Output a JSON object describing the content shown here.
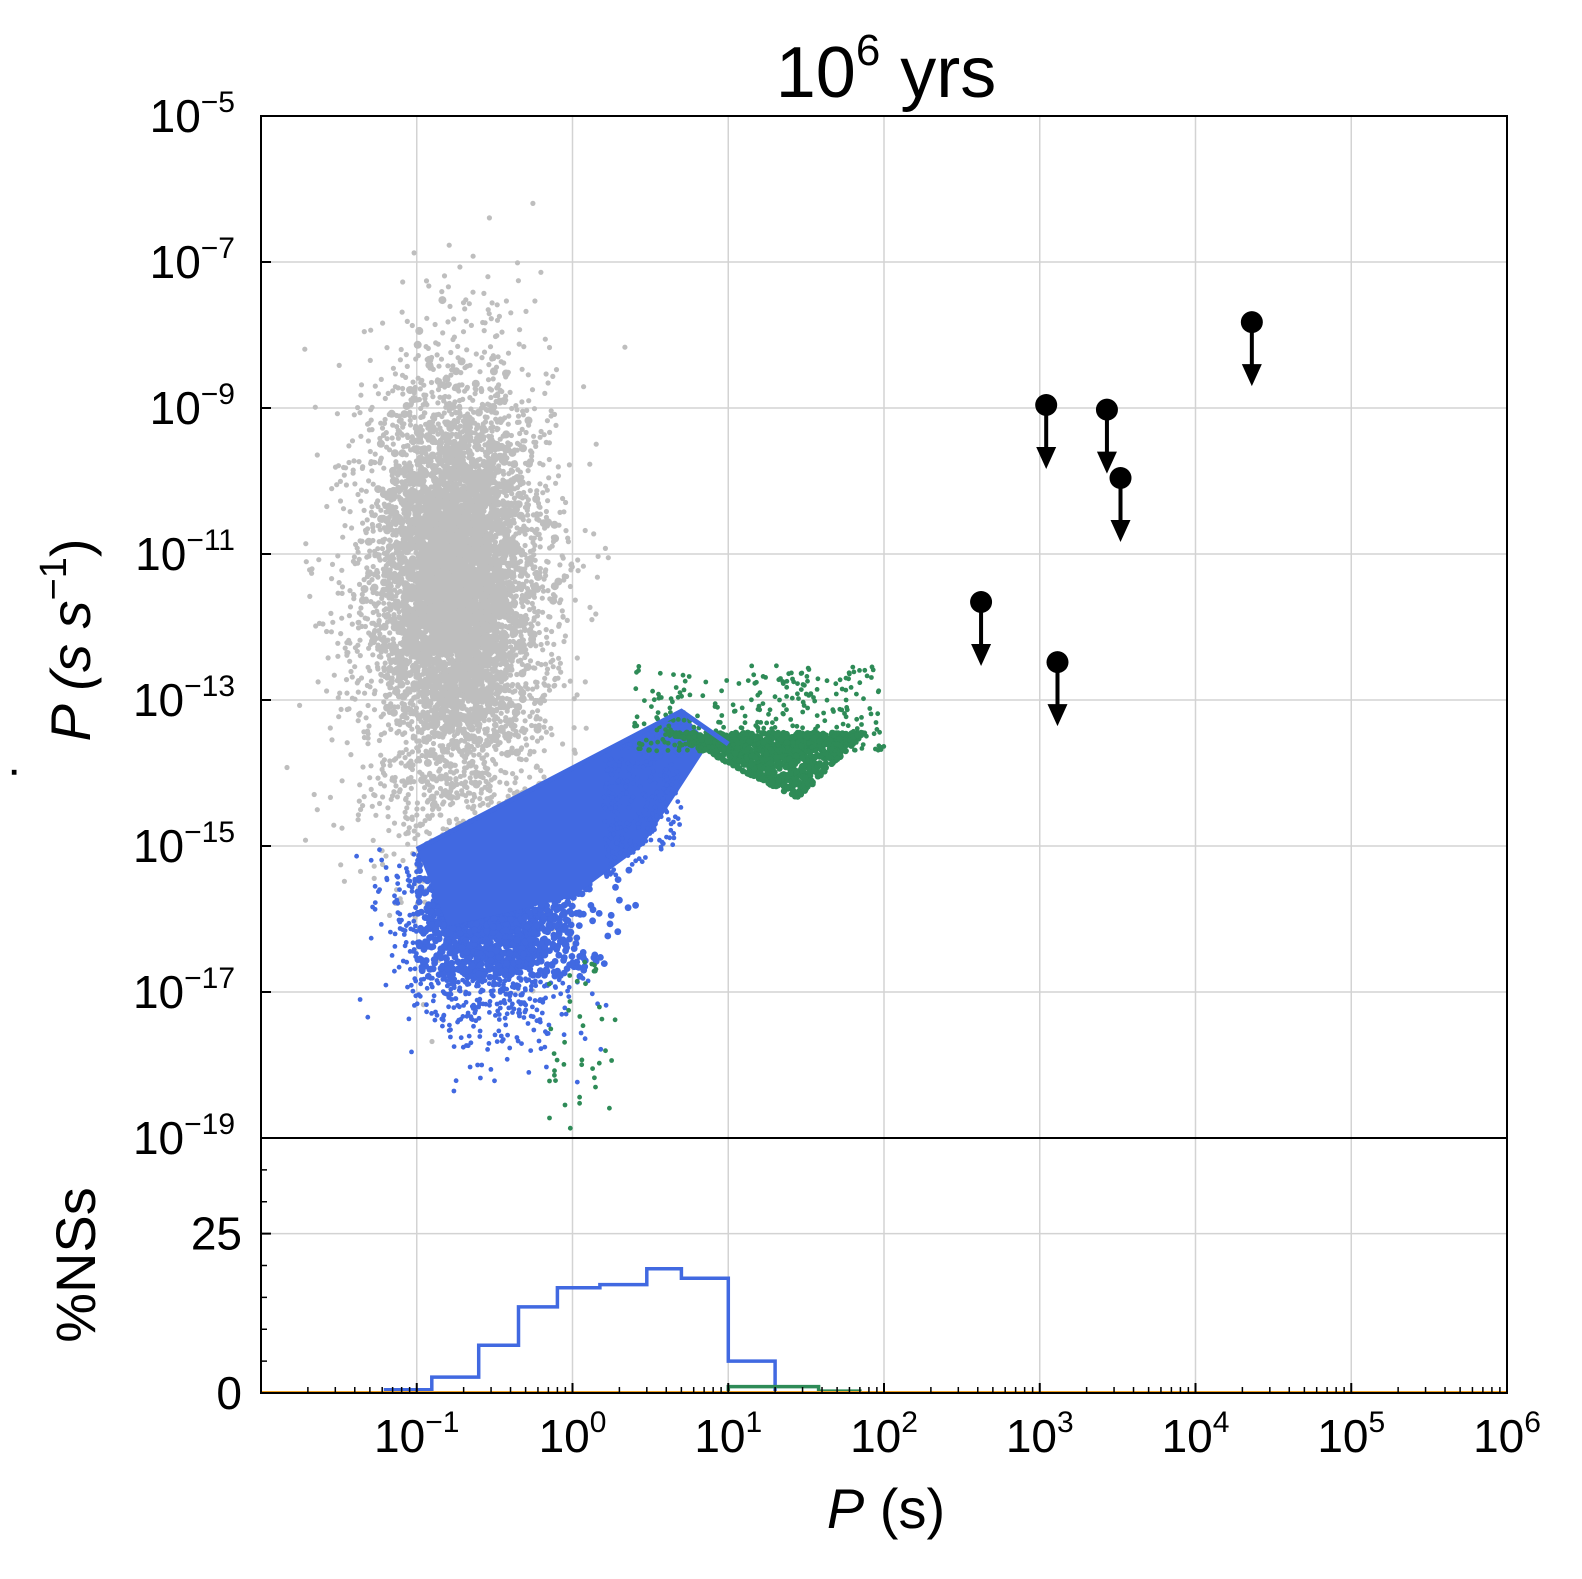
{
  "title": {
    "base": "10",
    "exp": "6",
    "suffix": " yrs"
  },
  "top_panel": {
    "ylabel": {
      "dot": "˙",
      "main": "P",
      "unit_open": " (s s",
      "unit_exp": "−1",
      "unit_close": ")"
    },
    "yticks": [
      {
        "base": "10",
        "exp": "−5",
        "value": 1e-05
      },
      {
        "base": "10",
        "exp": "−7",
        "value": 1e-07
      },
      {
        "base": "10",
        "exp": "−9",
        "value": 1e-09
      },
      {
        "base": "10",
        "exp": "−11",
        "value": 1e-11
      },
      {
        "base": "10",
        "exp": "−13",
        "value": 1e-13
      },
      {
        "base": "10",
        "exp": "−15",
        "value": 1e-15
      },
      {
        "base": "10",
        "exp": "−17",
        "value": 1e-17
      },
      {
        "base": "10",
        "exp": "−19",
        "value": 1e-19
      }
    ]
  },
  "bottom_panel": {
    "ylabel": "%NSs",
    "yticks": [
      {
        "label": "0",
        "value": 0
      },
      {
        "label": "25",
        "value": 25
      }
    ]
  },
  "xlabel": {
    "main": "P",
    "unit": " (s)"
  },
  "xticks": [
    {
      "base": "10",
      "exp": "−1",
      "value": 0.1
    },
    {
      "base": "10",
      "exp": "0",
      "value": 1
    },
    {
      "base": "10",
      "exp": "1",
      "value": 10
    },
    {
      "base": "10",
      "exp": "2",
      "value": 100
    },
    {
      "base": "10",
      "exp": "3",
      "value": 1000
    },
    {
      "base": "10",
      "exp": "4",
      "value": 10000
    },
    {
      "base": "10",
      "exp": "5",
      "value": 100000
    },
    {
      "base": "10",
      "exp": "6",
      "value": 1000000
    }
  ],
  "chart_data": [
    {
      "type": "scatter",
      "panel": "top",
      "xscale": "log",
      "yscale": "log",
      "xlim": [
        0.01,
        1000000
      ],
      "ylim": [
        1e-19,
        1e-05
      ],
      "grid": true,
      "colors": {
        "gray": "#bebebe",
        "blue": "#4169e1",
        "green": "#2e8b57",
        "black": "#000000"
      },
      "series": [
        {
          "color_key": "gray",
          "description_of_distribution": "log-normal cloud",
          "log10_P_center": -0.75,
          "log10_P_sigma": 0.3,
          "log10_Pdot_center": -11.6,
          "log10_Pdot_sigma": 1.5,
          "log10_P_range": [
            -1.9,
            0.45
          ],
          "log10_Pdot_range": [
            -18.2,
            -5.6
          ]
        },
        {
          "color_key": "blue",
          "log10_P_range": [
            -1.4,
            0.7
          ],
          "log10_Pdot_range": [
            -18.9,
            -13.8
          ],
          "upper_edge_line": {
            "P": [
              0.1,
              5.0
            ],
            "Pdot": [
              9e-16,
              7e-14
            ]
          },
          "descending_edge": {
            "P": [
              5.0,
              10.0
            ],
            "Pdot": [
              7e-14,
              2.5e-14
            ]
          }
        },
        {
          "color_key": "green",
          "wedge_vertices": {
            "P": [
              4.0,
              28.0,
              75.0
            ],
            "Pdot": [
              2e-14,
              2.5e-15,
              2e-14
            ]
          },
          "upper_scatter_range": {
            "P": [
              2.5,
              100.0
            ],
            "Pdot": [
              2e-14,
              3e-13
            ]
          },
          "lower_stragglers": {
            "P": [
              0.9,
              2.0
            ],
            "Pdot": [
              1e-19,
              3e-17
            ]
          }
        },
        {
          "color_key": "black",
          "kind": "upper_limits",
          "points": [
            {
              "x": 420,
              "y": 2.2e-12
            },
            {
              "x": 1100,
              "y": 1.1e-09
            },
            {
              "x": 2700,
              "y": 9.5e-10
            },
            {
              "x": 3300,
              "y": 1.1e-10
            },
            {
              "x": 1300,
              "y": 3.3e-13
            },
            {
              "x": 23000,
              "y": 1.5e-08
            }
          ]
        }
      ]
    },
    {
      "type": "histogram",
      "panel": "bottom",
      "xscale": "log",
      "xlim": [
        0.01,
        1000000
      ],
      "ylim": [
        0,
        40
      ],
      "grid": true,
      "series": [
        {
          "color_key": "blue",
          "bin_edges": [
            0.063,
            0.125,
            0.25,
            0.45,
            0.8,
            1.5,
            3.0,
            5.0,
            10.0,
            20.0
          ],
          "values": [
            0.5,
            2.5,
            7.5,
            13.5,
            16.5,
            17.0,
            19.5,
            18.0,
            5.0
          ]
        },
        {
          "color_key": "green",
          "bin_edges": [
            10.0,
            20.0,
            38.0,
            70.0
          ],
          "values": [
            1.0,
            1.0,
            0.3
          ]
        }
      ]
    }
  ]
}
